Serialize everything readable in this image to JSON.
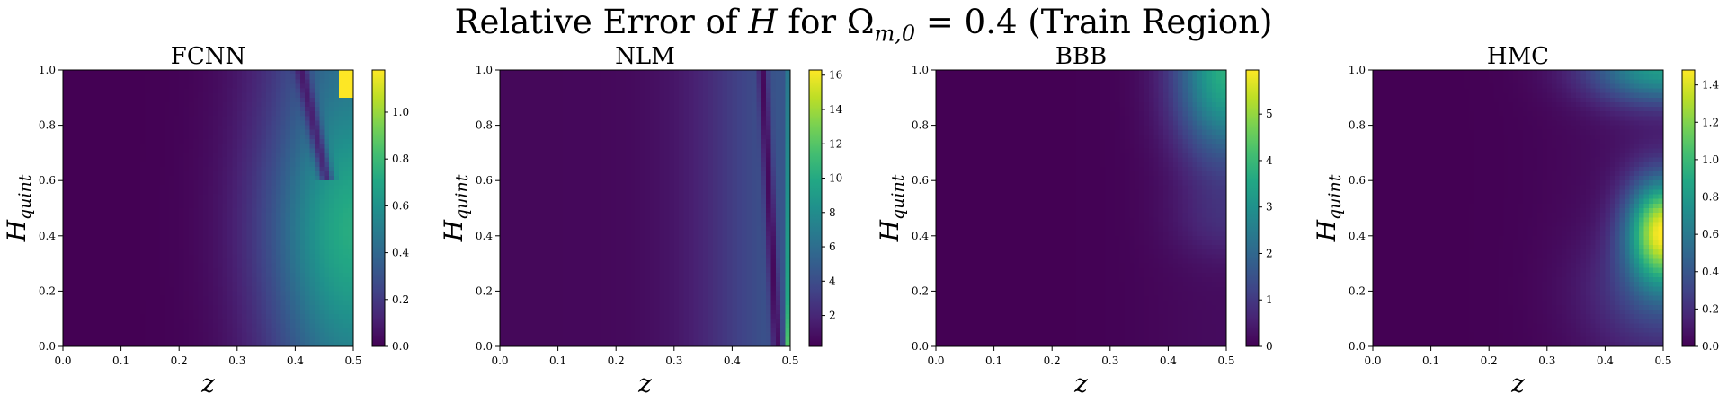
{
  "figure": {
    "suptitle": {
      "prefix": "Relative Error of ",
      "var": "H",
      "mid": " for Ω",
      "sub": "m,0",
      "suffix": " = 0.4 (Train Region)"
    }
  },
  "chart_data": [
    {
      "type": "heatmap",
      "title": "FCNN",
      "xlabel": "z",
      "ylabel": "H_quint",
      "xlim": [
        0.0,
        0.5
      ],
      "ylim": [
        0.0,
        1.0
      ],
      "xticks": [
        "0.0",
        "0.1",
        "0.2",
        "0.3",
        "0.4",
        "0.5"
      ],
      "yticks": [
        "0.0",
        "0.2",
        "0.4",
        "0.6",
        "0.8",
        "1.0"
      ],
      "colormap": "viridis",
      "colorbar": {
        "min": 0.0,
        "max": 1.18,
        "ticks": [
          "0.0",
          "0.2",
          "0.4",
          "0.6",
          "0.8",
          "1.0"
        ]
      }
    },
    {
      "type": "heatmap",
      "title": "NLM",
      "xlabel": "z",
      "ylabel": "H_quint",
      "xlim": [
        0.0,
        0.5
      ],
      "ylim": [
        0.0,
        1.0
      ],
      "xticks": [
        "0.0",
        "0.1",
        "0.2",
        "0.3",
        "0.4",
        "0.5"
      ],
      "yticks": [
        "0.0",
        "0.2",
        "0.4",
        "0.6",
        "0.8",
        "1.0"
      ],
      "colormap": "viridis",
      "colorbar": {
        "min": 0.2,
        "max": 16.3,
        "ticks": [
          "2",
          "4",
          "6",
          "8",
          "10",
          "12",
          "14",
          "16"
        ]
      }
    },
    {
      "type": "heatmap",
      "title": "BBB",
      "xlabel": "z",
      "ylabel": "H_quint",
      "xlim": [
        0.0,
        0.5
      ],
      "ylim": [
        0.0,
        1.0
      ],
      "xticks": [
        "0.0",
        "0.1",
        "0.2",
        "0.3",
        "0.4",
        "0.5"
      ],
      "yticks": [
        "0.0",
        "0.2",
        "0.4",
        "0.6",
        "0.8",
        "1.0"
      ],
      "colormap": "viridis",
      "colorbar": {
        "min": 0.0,
        "max": 5.95,
        "ticks": [
          "0",
          "1",
          "2",
          "3",
          "4",
          "5"
        ]
      }
    },
    {
      "type": "heatmap",
      "title": "HMC",
      "xlabel": "z",
      "ylabel": "H_quint",
      "xlim": [
        0.0,
        0.5
      ],
      "ylim": [
        0.0,
        1.0
      ],
      "xticks": [
        "0.0",
        "0.1",
        "0.2",
        "0.3",
        "0.4",
        "0.5"
      ],
      "yticks": [
        "0.0",
        "0.2",
        "0.4",
        "0.6",
        "0.8",
        "1.0"
      ],
      "colormap": "viridis",
      "colorbar": {
        "min": 0.0,
        "max": 1.48,
        "ticks": [
          "0.0",
          "0.2",
          "0.4",
          "0.6",
          "0.8",
          "1.0",
          "1.2",
          "1.4"
        ]
      }
    }
  ]
}
